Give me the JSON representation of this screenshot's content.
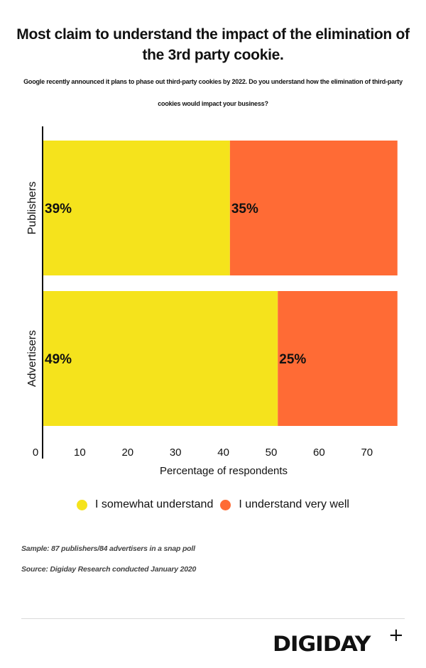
{
  "header": {
    "title": "Most claim to understand the impact of the elimination of the 3rd party cookie.",
    "subtitle": "Google recently announced it plans to phase out third-party cookies by 2022. Do you understand how the elimination of third-party cookies would impact your business?"
  },
  "chart_data": {
    "type": "bar",
    "orientation": "horizontal",
    "stacked": true,
    "title": "Most claim to understand the impact of the elimination of the 3rd party cookie.",
    "xlabel": "Percentage of respondents",
    "ylabel": "",
    "categories": [
      "Publishers",
      "Advertisers"
    ],
    "series": [
      {
        "name": "I somewhat understand",
        "color": "#F5E31C",
        "values": [
          39,
          49
        ],
        "labels": [
          "39%",
          "49%"
        ]
      },
      {
        "name": "I understand very well",
        "color": "#FF6B35",
        "values": [
          35,
          25
        ],
        "labels": [
          "35%",
          "25%"
        ]
      }
    ],
    "xlim": [
      0,
      74
    ],
    "xticks": [
      "0",
      "10",
      "20",
      "30",
      "40",
      "50",
      "60",
      "70"
    ],
    "grid": false,
    "legend_position": "bottom"
  },
  "legend": {
    "items": [
      {
        "label": "I somewhat understand",
        "color": "#F5E31C"
      },
      {
        "label": "I understand very well",
        "color": "#FF6B35"
      }
    ]
  },
  "notes": {
    "sample": "Sample: 87 publishers/84 advertisers in a snap poll",
    "source": "Source: Digiday Research conducted January 2020"
  },
  "brand": {
    "logo": "DIGIDAY",
    "plus": "+"
  }
}
